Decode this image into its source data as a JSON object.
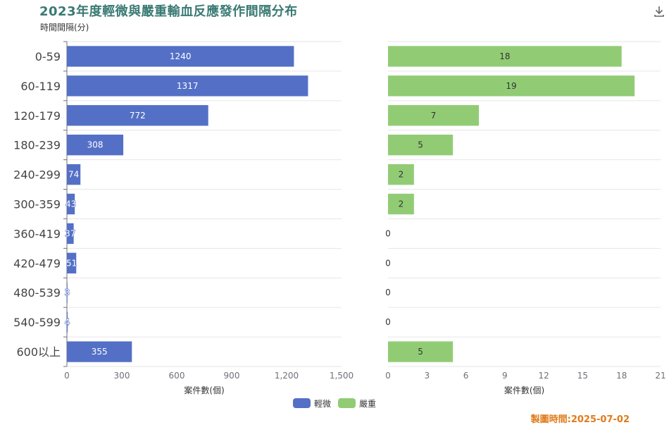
{
  "header": {
    "title": "2023年度輕微與嚴重輸血反應發作間隔分布",
    "y_unit": "時間間隔(分)",
    "download_icon": "download-icon"
  },
  "footer": {
    "date_label": "製圖時間:2025-07-02"
  },
  "legend": [
    {
      "name": "輕微",
      "color": "#5470c6"
    },
    {
      "name": "嚴重",
      "color": "#91cc75"
    }
  ],
  "chart_data": [
    {
      "type": "bar",
      "orientation": "horizontal",
      "categories": [
        "0-59",
        "60-119",
        "120-179",
        "180-239",
        "240-299",
        "300-359",
        "360-419",
        "420-479",
        "480-539",
        "540-599",
        "600以上"
      ],
      "series": [
        {
          "name": "輕微",
          "values": [
            1240,
            1317,
            772,
            308,
            74,
            43,
            37,
            51,
            3,
            4,
            355
          ],
          "color": "#5470c6"
        }
      ],
      "xlabel": "案件數(個)",
      "ylabel": "時間間隔(分)",
      "xlim": [
        0,
        1500
      ],
      "xticks": [
        "0",
        "300",
        "600",
        "900",
        "1,200",
        "1,500"
      ],
      "grid": true
    },
    {
      "type": "bar",
      "orientation": "horizontal",
      "categories": [
        "0-59",
        "60-119",
        "120-179",
        "180-239",
        "240-299",
        "300-359",
        "360-419",
        "420-479",
        "480-539",
        "540-599",
        "600以上"
      ],
      "series": [
        {
          "name": "嚴重",
          "values": [
            18,
            19,
            7,
            5,
            2,
            2,
            0,
            0,
            0,
            0,
            5
          ],
          "color": "#91cc75"
        }
      ],
      "xlabel": "案件數(個)",
      "xlim": [
        0,
        21
      ],
      "xticks": [
        "0",
        "3",
        "6",
        "9",
        "12",
        "15",
        "18",
        "21"
      ],
      "grid": true
    }
  ]
}
